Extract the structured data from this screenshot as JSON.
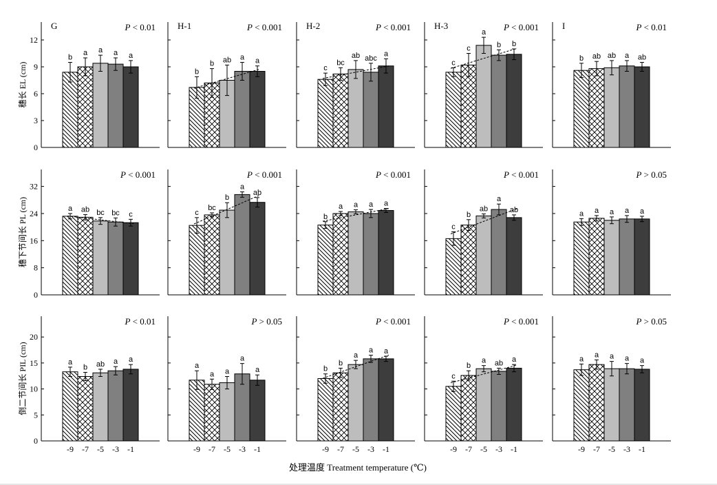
{
  "figure": {
    "x_axis_title": "处理温度 Treatment temperature (℃)",
    "panel_columns": [
      "G",
      "H-1",
      "H-2",
      "H-3",
      "I"
    ],
    "categories": [
      "-9",
      "-7",
      "-5",
      "-3",
      "-1"
    ],
    "bar_colors": [
      "#ffffff",
      "#ffffff",
      "#bdbdbd",
      "#808080",
      "#3d3d3d"
    ],
    "bar_patterns": [
      "diagonal-hatch",
      "cross-hatch",
      "solid",
      "solid",
      "solid"
    ]
  },
  "chart_data": [
    {
      "type": "bar",
      "row": 0,
      "col": 0,
      "panel_label": "G",
      "p_value": "P < 0.01",
      "ylabel": "穗长 EL (cm)",
      "ylim": [
        0,
        14
      ],
      "yticks": [
        0,
        3,
        6,
        9,
        12
      ],
      "categories": [
        "-9",
        "-7",
        "-5",
        "-3",
        "-1"
      ],
      "values": [
        8.4,
        9.0,
        9.4,
        9.3,
        9.0
      ],
      "errors": [
        1.1,
        1.0,
        0.9,
        0.7,
        0.7
      ],
      "letters": [
        "b",
        "a",
        "a",
        "a",
        "a"
      ],
      "trend_line": false
    },
    {
      "type": "bar",
      "row": 0,
      "col": 1,
      "panel_label": "H-1",
      "p_value": "P < 0.001",
      "ylabel": "",
      "ylim": [
        0,
        14
      ],
      "yticks": [
        0,
        3,
        6,
        9,
        12
      ],
      "categories": [
        "-9",
        "-7",
        "-5",
        "-3",
        "-1"
      ],
      "values": [
        6.7,
        7.2,
        7.5,
        8.5,
        8.5
      ],
      "errors": [
        1.2,
        1.6,
        1.7,
        1.0,
        0.6
      ],
      "letters": [
        "b",
        "b",
        "ab",
        "a",
        "a"
      ],
      "trend_line": true
    },
    {
      "type": "bar",
      "row": 0,
      "col": 2,
      "panel_label": "H-2",
      "p_value": "P < 0.001",
      "ylabel": "",
      "ylim": [
        0,
        14
      ],
      "yticks": [
        0,
        3,
        6,
        9,
        12
      ],
      "categories": [
        "-9",
        "-7",
        "-5",
        "-3",
        "-1"
      ],
      "values": [
        7.6,
        8.2,
        8.7,
        8.4,
        9.1
      ],
      "errors": [
        0.7,
        0.7,
        1.0,
        1.0,
        0.8
      ],
      "letters": [
        "c",
        "bc",
        "ab",
        "abc",
        "a"
      ],
      "trend_line": true
    },
    {
      "type": "bar",
      "row": 0,
      "col": 3,
      "panel_label": "H-3",
      "p_value": "P < 0.001",
      "ylabel": "",
      "ylim": [
        0,
        14
      ],
      "yticks": [
        0,
        3,
        6,
        9,
        12
      ],
      "categories": [
        "-9",
        "-7",
        "-5",
        "-3",
        "-1"
      ],
      "values": [
        8.4,
        9.2,
        11.4,
        10.3,
        10.4
      ],
      "errors": [
        0.5,
        1.3,
        0.9,
        0.6,
        0.6
      ],
      "letters": [
        "c",
        "c",
        "a",
        "b",
        "b"
      ],
      "trend_line": true
    },
    {
      "type": "bar",
      "row": 0,
      "col": 4,
      "panel_label": "I",
      "p_value": "P < 0.01",
      "ylabel": "",
      "ylim": [
        0,
        14
      ],
      "yticks": [
        0,
        3,
        6,
        9,
        12
      ],
      "categories": [
        "-9",
        "-7",
        "-5",
        "-3",
        "-1"
      ],
      "values": [
        8.6,
        8.8,
        8.9,
        9.1,
        9.0
      ],
      "errors": [
        0.8,
        0.8,
        0.8,
        0.6,
        0.5
      ],
      "letters": [
        "b",
        "ab",
        "ab",
        "a",
        "ab"
      ],
      "trend_line": false
    },
    {
      "type": "bar",
      "row": 1,
      "col": 0,
      "panel_label": "",
      "p_value": "P < 0.001",
      "ylabel": "穗下节间长 PL (cm)",
      "ylim": [
        0,
        37
      ],
      "yticks": [
        0,
        8,
        16,
        24,
        32
      ],
      "categories": [
        "-9",
        "-7",
        "-5",
        "-3",
        "-1"
      ],
      "values": [
        23.2,
        22.9,
        21.8,
        21.5,
        21.3
      ],
      "errors": [
        0.8,
        0.8,
        1.0,
        1.2,
        1.0
      ],
      "letters": [
        "a",
        "ab",
        "bc",
        "bc",
        "c"
      ],
      "trend_line": true
    },
    {
      "type": "bar",
      "row": 1,
      "col": 1,
      "panel_label": "",
      "p_value": "P < 0.001",
      "ylabel": "",
      "ylim": [
        0,
        37
      ],
      "yticks": [
        0,
        8,
        16,
        24,
        32
      ],
      "categories": [
        "-9",
        "-7",
        "-5",
        "-3",
        "-1"
      ],
      "values": [
        20.5,
        23.6,
        25.0,
        29.6,
        27.3
      ],
      "errors": [
        2.3,
        0.6,
        2.2,
        0.8,
        1.4
      ],
      "letters": [
        "c",
        "bc",
        "b",
        "a",
        "ab"
      ],
      "trend_line": true
    },
    {
      "type": "bar",
      "row": 1,
      "col": 2,
      "panel_label": "",
      "p_value": "P < 0.001",
      "ylabel": "",
      "ylim": [
        0,
        37
      ],
      "yticks": [
        0,
        8,
        16,
        24,
        32
      ],
      "categories": [
        "-9",
        "-7",
        "-5",
        "-3",
        "-1"
      ],
      "values": [
        20.6,
        24.0,
        24.5,
        24.0,
        24.9
      ],
      "errors": [
        1.0,
        0.6,
        0.6,
        1.2,
        0.6
      ],
      "letters": [
        "b",
        "a",
        "a",
        "a",
        "a"
      ],
      "trend_line": true
    },
    {
      "type": "bar",
      "row": 1,
      "col": 3,
      "panel_label": "",
      "p_value": "P < 0.001",
      "ylabel": "",
      "ylim": [
        0,
        37
      ],
      "yticks": [
        0,
        8,
        16,
        24,
        32
      ],
      "categories": [
        "-9",
        "-7",
        "-5",
        "-3",
        "-1"
      ],
      "values": [
        16.6,
        20.6,
        23.3,
        25.2,
        22.8
      ],
      "errors": [
        2.0,
        1.6,
        0.6,
        1.6,
        0.8
      ],
      "letters": [
        "c",
        "b",
        "ab",
        "a",
        "ab"
      ],
      "trend_line": true
    },
    {
      "type": "bar",
      "row": 1,
      "col": 4,
      "panel_label": "",
      "p_value": "P > 0.05",
      "ylabel": "",
      "ylim": [
        0,
        37
      ],
      "yticks": [
        0,
        8,
        16,
        24,
        32
      ],
      "categories": [
        "-9",
        "-7",
        "-5",
        "-3",
        "-1"
      ],
      "values": [
        21.5,
        22.6,
        22.0,
        22.4,
        22.4
      ],
      "errors": [
        1.0,
        0.8,
        1.0,
        1.0,
        0.8
      ],
      "letters": [
        "a",
        "a",
        "a",
        "a",
        "a"
      ],
      "trend_line": false
    },
    {
      "type": "bar",
      "row": 2,
      "col": 0,
      "panel_label": "",
      "p_value": "P < 0.01",
      "ylabel": "倒二节间长 PIL (cm)",
      "ylim": [
        0,
        24
      ],
      "yticks": [
        0,
        5,
        10,
        15,
        20
      ],
      "categories": [
        "-9",
        "-7",
        "-5",
        "-3",
        "-1"
      ],
      "values": [
        13.3,
        12.4,
        13.1,
        13.5,
        13.8
      ],
      "errors": [
        0.9,
        0.8,
        0.7,
        0.8,
        0.9
      ],
      "letters": [
        "a",
        "b",
        "ab",
        "a",
        "a"
      ],
      "trend_line": false
    },
    {
      "type": "bar",
      "row": 2,
      "col": 1,
      "panel_label": "",
      "p_value": "P > 0.05",
      "ylabel": "",
      "ylim": [
        0,
        24
      ],
      "yticks": [
        0,
        5,
        10,
        15,
        20
      ],
      "categories": [
        "-9",
        "-7",
        "-5",
        "-3",
        "-1"
      ],
      "values": [
        11.7,
        10.9,
        11.2,
        12.9,
        11.7
      ],
      "errors": [
        1.8,
        1.0,
        1.2,
        2.0,
        1.0
      ],
      "letters": [
        "a",
        "a",
        "a",
        "a",
        "a"
      ],
      "trend_line": false
    },
    {
      "type": "bar",
      "row": 2,
      "col": 2,
      "panel_label": "",
      "p_value": "P < 0.001",
      "ylabel": "",
      "ylim": [
        0,
        24
      ],
      "yticks": [
        0,
        5,
        10,
        15,
        20
      ],
      "categories": [
        "-9",
        "-7",
        "-5",
        "-3",
        "-1"
      ],
      "values": [
        12.0,
        13.1,
        14.7,
        15.8,
        15.8
      ],
      "errors": [
        0.9,
        0.9,
        0.8,
        0.7,
        0.5
      ],
      "letters": [
        "b",
        "b",
        "a",
        "a",
        "a"
      ],
      "trend_line": true
    },
    {
      "type": "bar",
      "row": 2,
      "col": 3,
      "panel_label": "",
      "p_value": "P < 0.001",
      "ylabel": "",
      "ylim": [
        0,
        24
      ],
      "yticks": [
        0,
        5,
        10,
        15,
        20
      ],
      "categories": [
        "-9",
        "-7",
        "-5",
        "-3",
        "-1"
      ],
      "values": [
        10.5,
        12.6,
        13.9,
        13.4,
        14.0
      ],
      "errors": [
        1.0,
        0.9,
        0.6,
        0.6,
        0.7
      ],
      "letters": [
        "c",
        "b",
        "a",
        "ab",
        "a"
      ],
      "trend_line": true
    },
    {
      "type": "bar",
      "row": 2,
      "col": 4,
      "panel_label": "",
      "p_value": "P > 0.05",
      "ylabel": "",
      "ylim": [
        0,
        24
      ],
      "yticks": [
        0,
        5,
        10,
        15,
        20
      ],
      "categories": [
        "-9",
        "-7",
        "-5",
        "-3",
        "-1"
      ],
      "values": [
        13.7,
        14.7,
        13.9,
        13.9,
        13.8
      ],
      "errors": [
        1.1,
        0.9,
        1.4,
        1.0,
        0.7
      ],
      "letters": [
        "a",
        "a",
        "a",
        "a",
        "a"
      ],
      "trend_line": false
    }
  ]
}
